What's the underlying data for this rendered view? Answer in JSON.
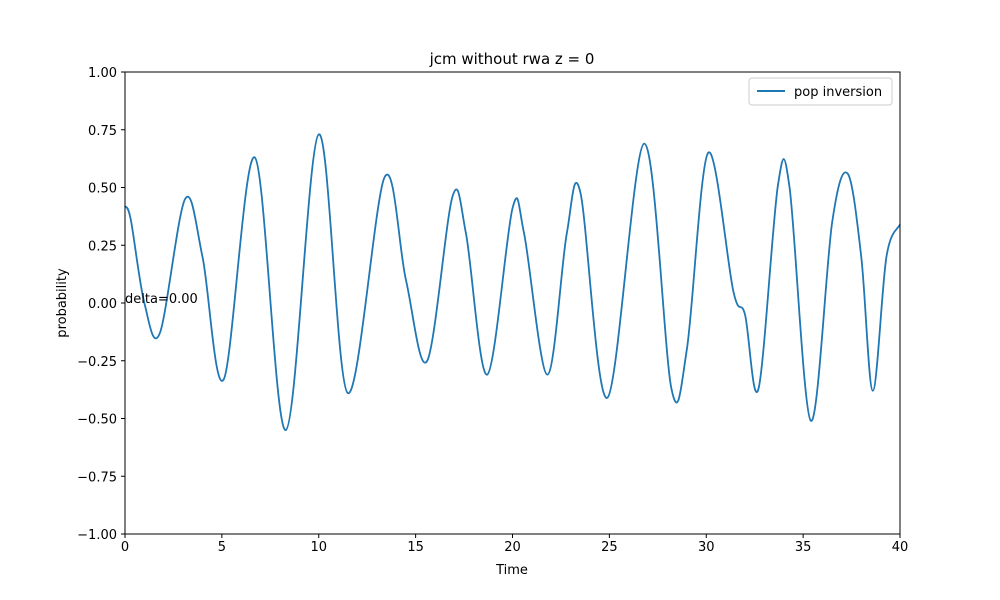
{
  "chart_data": {
    "type": "line",
    "title": "jcm without rwa z = 0",
    "xlabel": "Time",
    "ylabel": "probability",
    "annotation": "delta=0.00",
    "legend": "upper right",
    "xlim": [
      0,
      40
    ],
    "ylim": [
      -1,
      1
    ],
    "xticks": [
      0,
      5,
      10,
      15,
      20,
      25,
      30,
      35,
      40
    ],
    "yticks": [
      {
        "value": -1,
        "label": "−1.00"
      },
      {
        "value": -0.75,
        "label": "−0.75"
      },
      {
        "value": -0.5,
        "label": "−0.50"
      },
      {
        "value": -0.25,
        "label": "−0.25"
      },
      {
        "value": 0,
        "label": "0.00"
      },
      {
        "value": 0.25,
        "label": "0.25"
      },
      {
        "value": 0.5,
        "label": "0.50"
      },
      {
        "value": 0.75,
        "label": "0.75"
      },
      {
        "value": 1,
        "label": "1.00"
      }
    ],
    "x": [
      0,
      0.3,
      1.0,
      1.8,
      3.1,
      4.0,
      5.1,
      6.7,
      8.3,
      10.0,
      11.5,
      13.4,
      14.5,
      15.6,
      16.9,
      17.6,
      18.7,
      20.0,
      20.6,
      21.8,
      22.8,
      23.5,
      24.9,
      26.8,
      28.2,
      29.0,
      30.1,
      31.4,
      32.0,
      32.7,
      33.7,
      34.3,
      35.4,
      36.5,
      37.3,
      38.0,
      38.6,
      39.3,
      40
    ],
    "series": [
      {
        "name": "pop inversion",
        "color": "#1f77b4",
        "values": [
          0.42,
          0.36,
          0.0,
          -0.13,
          0.45,
          0.2,
          -0.33,
          0.63,
          -0.55,
          0.73,
          -0.39,
          0.545,
          0.1,
          -0.25,
          0.46,
          0.3,
          -0.31,
          0.41,
          0.3,
          -0.31,
          0.3,
          0.48,
          -0.41,
          0.69,
          -0.37,
          -0.2,
          0.65,
          0.05,
          -0.05,
          -0.37,
          0.51,
          0.5,
          -0.51,
          0.35,
          0.56,
          0.2,
          -0.38,
          0.2,
          0.34
        ]
      }
    ]
  }
}
